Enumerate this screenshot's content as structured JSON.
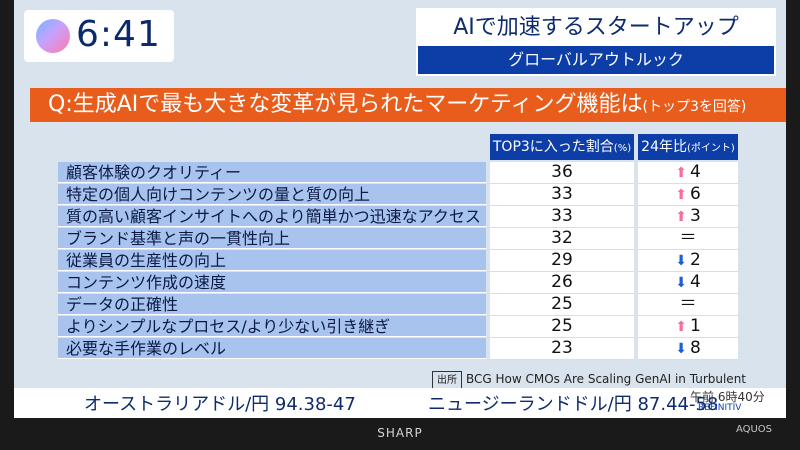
{
  "header": {
    "time": "6:41",
    "title": "AIで加速するスタートアップ",
    "subtitle": "グローバルアウトルック"
  },
  "question": {
    "text": "Q:生成AIで最も大きな変革が見られたマーケティング機能は",
    "note": "(トップ3を回答)"
  },
  "table": {
    "columns": [
      "TOP3に入った割合",
      "24年比"
    ],
    "units": [
      "(%)",
      "(ポイント)"
    ],
    "rows": [
      {
        "label": "顧客体験のクオリティー",
        "pct": "36",
        "delta_dir": "up",
        "delta": "4"
      },
      {
        "label": "特定の個人向けコンテンツの量と質の向上",
        "pct": "33",
        "delta_dir": "up",
        "delta": "6"
      },
      {
        "label": "質の高い顧客インサイトへのより簡単かつ迅速なアクセス",
        "pct": "33",
        "delta_dir": "up",
        "delta": "3"
      },
      {
        "label": "ブランド基準と声の一貫性向上",
        "pct": "32",
        "delta_dir": "equal",
        "delta": "＝"
      },
      {
        "label": "従業員の生産性の向上",
        "pct": "29",
        "delta_dir": "down",
        "delta": "2"
      },
      {
        "label": "コンテンツ作成の速度",
        "pct": "26",
        "delta_dir": "down",
        "delta": "4"
      },
      {
        "label": "データの正確性",
        "pct": "25",
        "delta_dir": "equal",
        "delta": "＝"
      },
      {
        "label": "よりシンプルなプロセス/より少ない引き継ぎ",
        "pct": "25",
        "delta_dir": "up",
        "delta": "1"
      },
      {
        "label": "必要な手作業のレベル",
        "pct": "23",
        "delta_dir": "down",
        "delta": "8"
      }
    ]
  },
  "source": {
    "tag": "出所",
    "text": "BCG How CMOs Are Scaling GenAI in Turbulent Times"
  },
  "ticker": {
    "a_label": "オーストラリアドル/円",
    "a_value": "94.38-47",
    "b_label": "ニュージーランドドル/円",
    "b_value": "87.44-58",
    "time": "午前 6時40分",
    "provider": "REFINITIV"
  },
  "brand": {
    "name": "SHARP",
    "model": "AQUOS"
  }
}
